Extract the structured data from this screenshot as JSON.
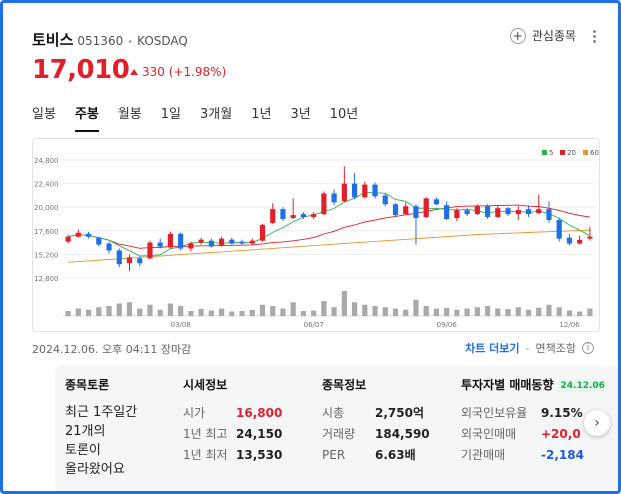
{
  "stock": {
    "name": "토비스",
    "code": "051360",
    "market": "KOSDAQ",
    "price": "17,010",
    "change": "330 (+1.98%)"
  },
  "favorite": {
    "label": "관심종목",
    "icon": "plus-icon"
  },
  "tabs": [
    {
      "label": "일봉",
      "active": false
    },
    {
      "label": "주봉",
      "active": true
    },
    {
      "label": "월봉",
      "active": false
    },
    {
      "label": "1일",
      "active": false
    },
    {
      "label": "3개월",
      "active": false
    },
    {
      "label": "1년",
      "active": false
    },
    {
      "label": "3년",
      "active": false
    },
    {
      "label": "10년",
      "active": false
    }
  ],
  "chart_data": {
    "type": "candlestick",
    "ylim": [
      12800,
      24800
    ],
    "yticks": [
      "24,800",
      "22,400",
      "20,000",
      "17,600",
      "15,200",
      "12,800"
    ],
    "xticks": [
      {
        "label": "03/08",
        "index": 11
      },
      {
        "label": "06/07",
        "index": 24
      },
      {
        "label": "09/06",
        "index": 37
      },
      {
        "label": "12/06",
        "index": 49
      }
    ],
    "legend": [
      {
        "name": "5",
        "color": "#2db54b"
      },
      {
        "name": "20",
        "color": "#e0212b"
      },
      {
        "name": "60",
        "color": "#e8952d"
      }
    ],
    "colors": {
      "up": "#e0212b",
      "down": "#1f6fe5",
      "volume": "#a9a9a9"
    },
    "candles": [
      {
        "o": 16500,
        "c": 17000,
        "h": 17200,
        "l": 16300,
        "v": 20
      },
      {
        "o": 17000,
        "c": 17400,
        "h": 17700,
        "l": 16900,
        "v": 30
      },
      {
        "o": 17300,
        "c": 17000,
        "h": 17500,
        "l": 16800,
        "v": 25
      },
      {
        "o": 16900,
        "c": 16200,
        "h": 17000,
        "l": 16000,
        "v": 35
      },
      {
        "o": 16300,
        "c": 15600,
        "h": 16500,
        "l": 15300,
        "v": 40
      },
      {
        "o": 15600,
        "c": 14200,
        "h": 15800,
        "l": 13900,
        "v": 50
      },
      {
        "o": 14300,
        "c": 14900,
        "h": 15200,
        "l": 13530,
        "v": 55
      },
      {
        "o": 14800,
        "c": 14300,
        "h": 15000,
        "l": 14000,
        "v": 30
      },
      {
        "o": 14800,
        "c": 16400,
        "h": 16600,
        "l": 14700,
        "v": 45
      },
      {
        "o": 16400,
        "c": 16000,
        "h": 16800,
        "l": 15800,
        "v": 25
      },
      {
        "o": 15900,
        "c": 17300,
        "h": 17500,
        "l": 15800,
        "v": 50
      },
      {
        "o": 17300,
        "c": 15800,
        "h": 17400,
        "l": 15600,
        "v": 40
      },
      {
        "o": 15800,
        "c": 16300,
        "h": 16500,
        "l": 15500,
        "v": 20
      },
      {
        "o": 16400,
        "c": 16700,
        "h": 16900,
        "l": 16200,
        "v": 28
      },
      {
        "o": 16600,
        "c": 16000,
        "h": 16800,
        "l": 15900,
        "v": 22
      },
      {
        "o": 16100,
        "c": 16800,
        "h": 17000,
        "l": 16000,
        "v": 30
      },
      {
        "o": 16700,
        "c": 16300,
        "h": 16900,
        "l": 16200,
        "v": 18
      },
      {
        "o": 16500,
        "c": 16300,
        "h": 16700,
        "l": 16200,
        "v": 20
      },
      {
        "o": 16300,
        "c": 16600,
        "h": 16800,
        "l": 16200,
        "v": 24
      },
      {
        "o": 16600,
        "c": 18200,
        "h": 18300,
        "l": 16500,
        "v": 45
      },
      {
        "o": 18400,
        "c": 19800,
        "h": 20400,
        "l": 18300,
        "v": 40
      },
      {
        "o": 19800,
        "c": 18800,
        "h": 20000,
        "l": 18600,
        "v": 30
      },
      {
        "o": 18900,
        "c": 19200,
        "h": 20900,
        "l": 18800,
        "v": 55
      },
      {
        "o": 19300,
        "c": 19000,
        "h": 19500,
        "l": 18800,
        "v": 20
      },
      {
        "o": 19000,
        "c": 19300,
        "h": 19500,
        "l": 18800,
        "v": 22
      },
      {
        "o": 19300,
        "c": 21400,
        "h": 21600,
        "l": 19200,
        "v": 60
      },
      {
        "o": 21400,
        "c": 20500,
        "h": 21800,
        "l": 20200,
        "v": 35
      },
      {
        "o": 20600,
        "c": 22400,
        "h": 24150,
        "l": 20500,
        "v": 100
      },
      {
        "o": 22400,
        "c": 21000,
        "h": 23500,
        "l": 20800,
        "v": 55
      },
      {
        "o": 21000,
        "c": 22300,
        "h": 22600,
        "l": 20900,
        "v": 45
      },
      {
        "o": 22300,
        "c": 21100,
        "h": 22500,
        "l": 20900,
        "v": 40
      },
      {
        "o": 21200,
        "c": 20300,
        "h": 21400,
        "l": 20100,
        "v": 35
      },
      {
        "o": 20300,
        "c": 19200,
        "h": 20400,
        "l": 19000,
        "v": 30
      },
      {
        "o": 19300,
        "c": 20100,
        "h": 20500,
        "l": 19200,
        "v": 25
      },
      {
        "o": 20100,
        "c": 18900,
        "h": 20300,
        "l": 16200,
        "v": 65
      },
      {
        "o": 19000,
        "c": 20900,
        "h": 21000,
        "l": 18900,
        "v": 40
      },
      {
        "o": 20800,
        "c": 20300,
        "h": 21000,
        "l": 20200,
        "v": 30
      },
      {
        "o": 20200,
        "c": 18800,
        "h": 20600,
        "l": 18700,
        "v": 32
      },
      {
        "o": 18900,
        "c": 19700,
        "h": 19900,
        "l": 18600,
        "v": 25
      },
      {
        "o": 19700,
        "c": 19300,
        "h": 19900,
        "l": 19100,
        "v": 30
      },
      {
        "o": 19300,
        "c": 20100,
        "h": 20300,
        "l": 19200,
        "v": 35
      },
      {
        "o": 20100,
        "c": 19000,
        "h": 20300,
        "l": 18800,
        "v": 40
      },
      {
        "o": 19000,
        "c": 19900,
        "h": 20100,
        "l": 18900,
        "v": 30
      },
      {
        "o": 19900,
        "c": 19300,
        "h": 20000,
        "l": 19100,
        "v": 28
      },
      {
        "o": 19300,
        "c": 19700,
        "h": 20100,
        "l": 18700,
        "v": 35
      },
      {
        "o": 19800,
        "c": 19300,
        "h": 20200,
        "l": 19000,
        "v": 25
      },
      {
        "o": 19400,
        "c": 19800,
        "h": 21300,
        "l": 19300,
        "v": 33
      },
      {
        "o": 19800,
        "c": 18700,
        "h": 20600,
        "l": 18400,
        "v": 45
      },
      {
        "o": 18700,
        "c": 16800,
        "h": 18900,
        "l": 16500,
        "v": 35
      },
      {
        "o": 16900,
        "c": 16300,
        "h": 17300,
        "l": 16100,
        "v": 22
      },
      {
        "o": 16300,
        "c": 16680,
        "h": 17100,
        "l": 16200,
        "v": 18
      },
      {
        "o": 16800,
        "c": 17010,
        "h": 18000,
        "l": 16600,
        "v": 30
      }
    ]
  },
  "timestamp": "2024.12.06. 오후 04:11 장마감",
  "chart_more": "차트 더보기",
  "disclaimer": "면책조항",
  "cards": {
    "discussion": {
      "title": "종목토론",
      "lines": [
        "최근 1주일간",
        "21개의",
        "토론이",
        "올라왔어요"
      ]
    },
    "quote": {
      "title": "시세정보",
      "rows": [
        {
          "label": "시가",
          "value": "16,800",
          "color": "red"
        },
        {
          "label": "1년 최고",
          "value": "24,150",
          "color": "default"
        },
        {
          "label": "1년 최저",
          "value": "13,530",
          "color": "default"
        }
      ]
    },
    "info": {
      "title": "종목정보",
      "rows": [
        {
          "label": "시총",
          "value": "2,750억",
          "color": "default"
        },
        {
          "label": "거래량",
          "value": "184,590",
          "color": "default"
        },
        {
          "label": "PER",
          "value": "6.63배",
          "color": "default"
        }
      ]
    },
    "investor": {
      "title": "투자자별 매매동향",
      "date": "24.12.06",
      "rows": [
        {
          "label": "외국인보유율",
          "value": "9.15%",
          "color": "default"
        },
        {
          "label": "외국인매매",
          "value": "+20,0",
          "color": "red"
        },
        {
          "label": "기관매매",
          "value": "-2,184",
          "color": "blue"
        }
      ]
    }
  }
}
